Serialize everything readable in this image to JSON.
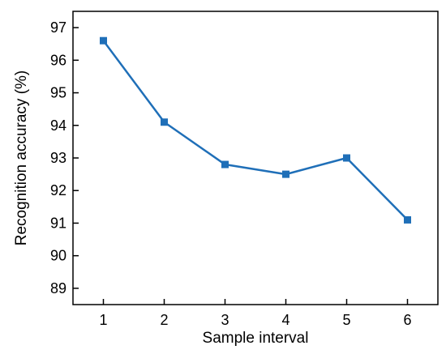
{
  "chart_data": {
    "type": "line",
    "xlabel": "Sample interval",
    "ylabel": "Recognition accuracy (%)",
    "x": [
      1,
      2,
      3,
      4,
      5,
      6
    ],
    "series": [
      {
        "values": [
          96.6,
          94.1,
          92.8,
          92.5,
          93.0,
          91.1
        ]
      }
    ],
    "xlim": [
      0.5,
      6.5
    ],
    "ylim": [
      88.5,
      97.5
    ],
    "xticks": [
      "1",
      "2",
      "3",
      "4",
      "5",
      "6"
    ],
    "yticks": [
      "89",
      "90",
      "91",
      "92",
      "93",
      "94",
      "95",
      "96",
      "97"
    ],
    "ytick_values": [
      89,
      90,
      91,
      92,
      93,
      94,
      95,
      96,
      97
    ],
    "grid": false,
    "legend": "none",
    "colors": {
      "line": "#1f6fb8",
      "marker": "#1f6fb8",
      "axis": "#000000"
    },
    "marker": "square"
  }
}
